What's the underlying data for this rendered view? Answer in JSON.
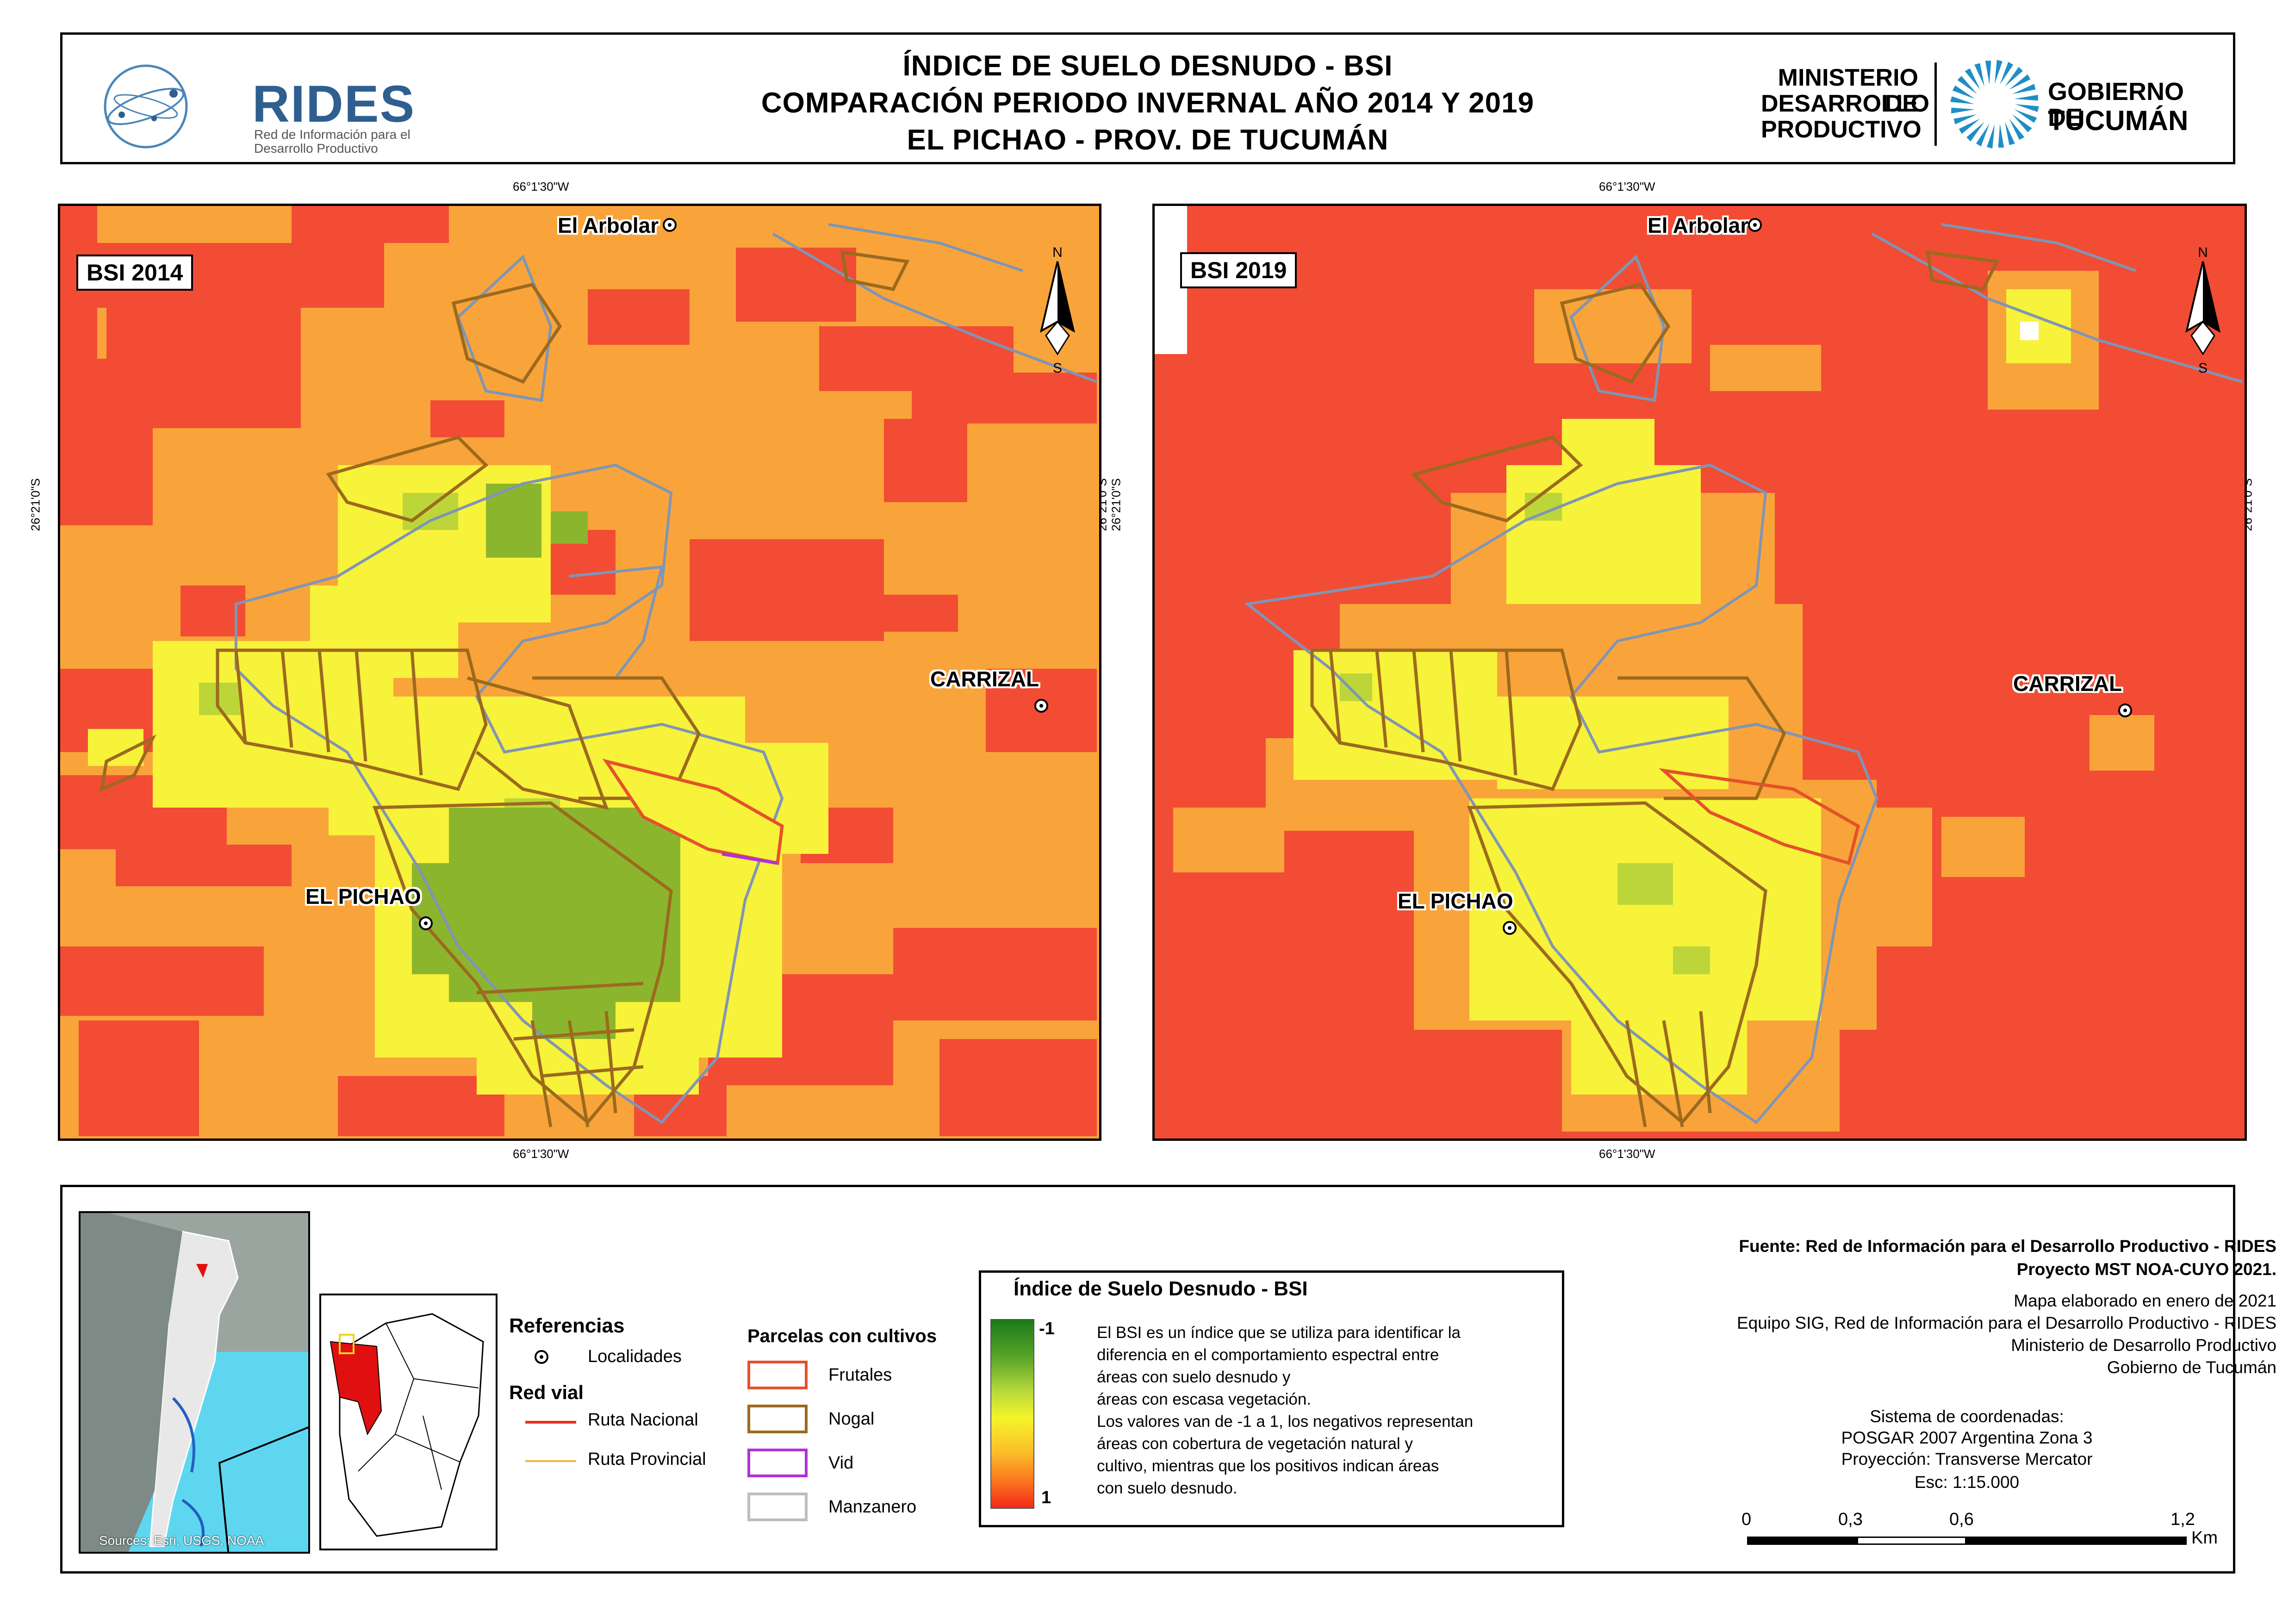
{
  "header": {
    "title_line1": "ÍNDICE DE SUELO DESNUDO - BSI",
    "title_line2": "COMPARACIÓN PERIODO INVERNAL AÑO 2014 Y 2019",
    "title_line3": "EL PICHAO - PROV. DE TUCUMÁN",
    "rides_name": "RIDES",
    "rides_sub1": "Red de Información para el",
    "rides_sub2": "Desarrollo Productivo",
    "ministry_line1": "MINISTERIO DE",
    "ministry_line2": "DESARROLLO",
    "ministry_line3": "PRODUCTIVO",
    "gov_line1": "GOBIERNO DE",
    "gov_line2": "TUCUMÁN"
  },
  "maps": [
    {
      "label": "BSI 2014",
      "coord_top": "66°1'30\"W",
      "coord_bottom": "66°1'30\"W",
      "coord_left": "26°21'0\"S",
      "coord_right": "26°21'0\"S"
    },
    {
      "label": "BSI 2019",
      "coord_top": "66°1'30\"W",
      "coord_bottom": "66°1'30\"W",
      "coord_left": "26°21'0\"S",
      "coord_right": "26°21'0\"S"
    }
  ],
  "places": {
    "arbolar": "El Arbolar",
    "carrizal": "CARRIZAL",
    "pichao": "EL PICHAO"
  },
  "north_arrow": {
    "n": "N",
    "s": "S"
  },
  "inset": {
    "sources": "Sources: Esri, USGS, NOAA"
  },
  "references": {
    "title": "Referencias",
    "localidades": "Localidades",
    "red_vial": "Red vial",
    "ruta_nacional": "Ruta Nacional",
    "ruta_provincial": "Ruta Provincial",
    "ruta_nacional_color": "#e8321e",
    "ruta_provincial_color": "#f2b233"
  },
  "parcelas": {
    "title": "Parcelas con cultivos",
    "items": [
      {
        "label": "Frutales",
        "color": "#e3522a"
      },
      {
        "label": "Nogal",
        "color": "#9c6a1e"
      },
      {
        "label": "Vid",
        "color": "#b032d6"
      },
      {
        "label": "Manzanero",
        "color": "#bdbdbd"
      }
    ]
  },
  "bsi_legend": {
    "title": "Índice de Suelo Desnudo - BSI",
    "max_label": "-1",
    "min_label": "1",
    "desc": [
      "El BSI es un índice que se utiliza para identificar la",
      "diferencia en el comportamiento espectral entre",
      "áreas con suelo desnudo y",
      "áreas con escasa vegetación.",
      "Los valores van de -1 a 1, los negativos representan",
      "áreas con cobertura de vegetación natural y",
      "cultivo, mientras que los positivos indican áreas",
      "con suelo desnudo."
    ]
  },
  "credits": {
    "fuente": "Fuente: Red de Información para el Desarrollo Productivo - RIDES",
    "proyecto": "Proyecto MST NOA-CUYO 2021.",
    "elaborado": "Mapa elaborado en enero de 2021",
    "equipo": "Equipo SIG, Red de Información para el Desarrollo Productivo - RIDES",
    "ministerio": "Ministerio de Desarrollo Productivo",
    "gobierno": "Gobierno de Tucumán",
    "sistema": "Sistema de coordenadas:",
    "posgar": "POSGAR 2007 Argentina Zona 3",
    "proyeccion": "Proyección: Transverse Mercator",
    "escala": "Esc: 1:15.000"
  },
  "scale": {
    "ticks": [
      "0",
      "0,3",
      "0,6",
      "1,2"
    ],
    "unit": "Km"
  },
  "colors": {
    "bsi_red": "#f24c35",
    "bsi_orange": "#f9a43a",
    "bsi_yellow": "#f7f23a",
    "bsi_lightgreen": "#bcd63a",
    "bsi_green": "#8cb52e",
    "manzanero": "#7f95b5",
    "nogal": "#9c6a1e",
    "frutales": "#e3522a"
  }
}
